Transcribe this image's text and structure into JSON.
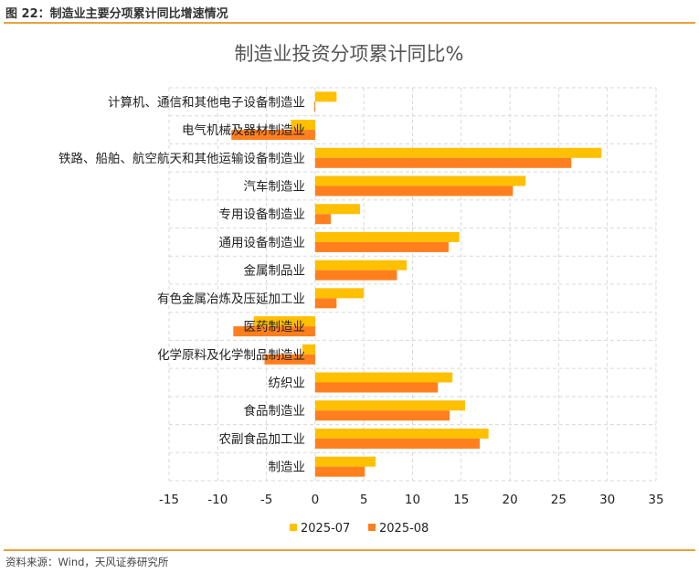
{
  "figure_title": "图 22：制造业主要分项累计同比增速情况",
  "source_note": "资料来源：Wind，天风证券研究所",
  "colors": {
    "s1": "#FFC000",
    "s2": "#FF7F1E",
    "rule": "#E8A33A",
    "grid": "#D9D9D9"
  },
  "chart_data": {
    "type": "bar",
    "orientation": "horizontal",
    "title": "制造业投资分项累计同比%",
    "categories": [
      "计算机、通信和其他电子设备制造业",
      "电气机械及器材制造业",
      "铁路、船舶、航空航天和其他运输设备制造业",
      "汽车制造业",
      "专用设备制造业",
      "通用设备制造业",
      "金属制品业",
      "有色金属冶炼及压延加工业",
      "医药制造业",
      "化学原料及化学制品制造业",
      "纺织业",
      "食品制造业",
      "农副食品加工业",
      "制造业"
    ],
    "series": [
      {
        "name": "2025-07",
        "values": [
          2.2,
          -2.5,
          29.4,
          21.6,
          4.6,
          14.8,
          9.4,
          5.0,
          -6.3,
          -1.3,
          14.1,
          15.4,
          17.8,
          6.2
        ]
      },
      {
        "name": "2025-08",
        "values": [
          -0.1,
          -8.6,
          26.3,
          20.3,
          1.6,
          13.7,
          8.4,
          2.2,
          -8.4,
          -5.2,
          12.6,
          13.8,
          16.9,
          5.1
        ]
      }
    ],
    "xlim": [
      -15,
      35
    ],
    "xticks": [
      -15,
      -10,
      -5,
      0,
      5,
      10,
      15,
      20,
      25,
      30,
      35
    ],
    "grid": true,
    "legend_position": "bottom"
  }
}
